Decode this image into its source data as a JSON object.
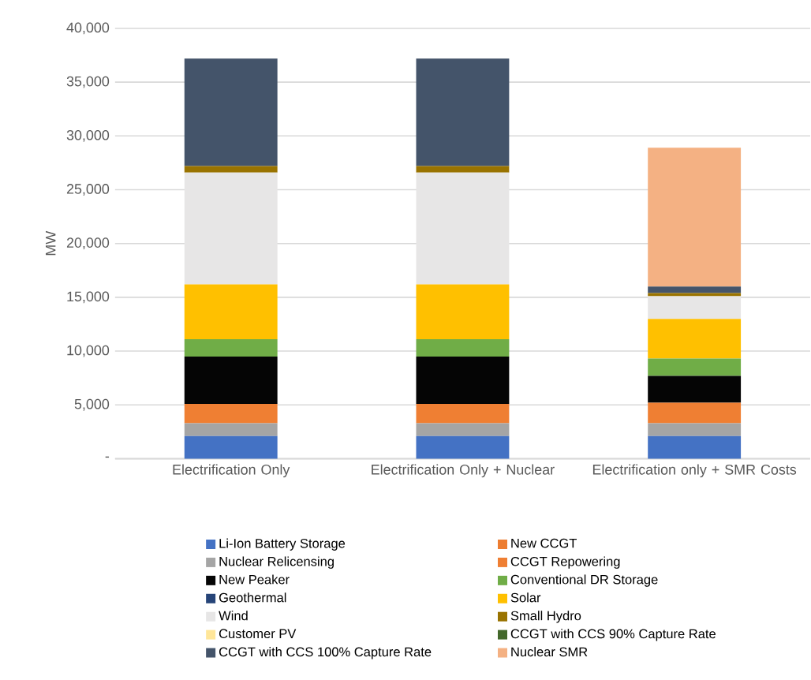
{
  "chart_data": {
    "type": "bar",
    "stacked": true,
    "ylabel": "MW",
    "categories": [
      "Electrification Only",
      "Electrification Only + Nuclear",
      "Electrification only + SMR Costs"
    ],
    "series": [
      {
        "name": "Li-Ion Battery Storage",
        "color": "#4472c4",
        "values": [
          2100,
          2100,
          2100
        ]
      },
      {
        "name": "New CCGT",
        "color": "#ed7d31",
        "values": [
          0,
          0,
          0
        ]
      },
      {
        "name": "Nuclear Relicensing",
        "color": "#a5a5a5",
        "values": [
          1200,
          1200,
          1200
        ]
      },
      {
        "name": "CCGT Repowering",
        "color": "#ef7f33",
        "values": [
          1800,
          1800,
          1900
        ]
      },
      {
        "name": "New Peaker",
        "color": "#050505",
        "values": [
          4400,
          4400,
          2500
        ]
      },
      {
        "name": "Conventional DR Storage",
        "color": "#70ad47",
        "values": [
          1600,
          1600,
          1600
        ]
      },
      {
        "name": "Geothermal",
        "color": "#264478",
        "values": [
          0,
          0,
          0
        ]
      },
      {
        "name": "Solar",
        "color": "#ffc000",
        "values": [
          5100,
          5100,
          3700
        ]
      },
      {
        "name": "Wind",
        "color": "#e7e6e6",
        "values": [
          10400,
          10400,
          2100
        ]
      },
      {
        "name": "Small Hydro",
        "color": "#997300",
        "values": [
          600,
          600,
          300
        ]
      },
      {
        "name": "Customer PV",
        "color": "#ffe699",
        "values": [
          0,
          0,
          0
        ]
      },
      {
        "name": "CCGT with CCS 90% Capture Rate",
        "color": "#43682b",
        "values": [
          0,
          0,
          0
        ]
      },
      {
        "name": "CCGT with CCS 100% Capture Rate",
        "color": "#44546a",
        "values": [
          10000,
          10000,
          600
        ]
      },
      {
        "name": "Nuclear SMR",
        "color": "#f4b183",
        "values": [
          0,
          0,
          12900
        ]
      }
    ],
    "ylim": [
      0,
      40000
    ],
    "yticks": [
      {
        "value": 0,
        "label": "-"
      },
      {
        "value": 5000,
        "label": "5,000"
      },
      {
        "value": 10000,
        "label": "10,000"
      },
      {
        "value": 15000,
        "label": "15,000"
      },
      {
        "value": 20000,
        "label": "20,000"
      },
      {
        "value": 25000,
        "label": "25,000"
      },
      {
        "value": 30000,
        "label": "30,000"
      },
      {
        "value": 35000,
        "label": "35,000"
      },
      {
        "value": 40000,
        "label": "40,000"
      }
    ],
    "grid": "y",
    "legend": "bottom"
  }
}
